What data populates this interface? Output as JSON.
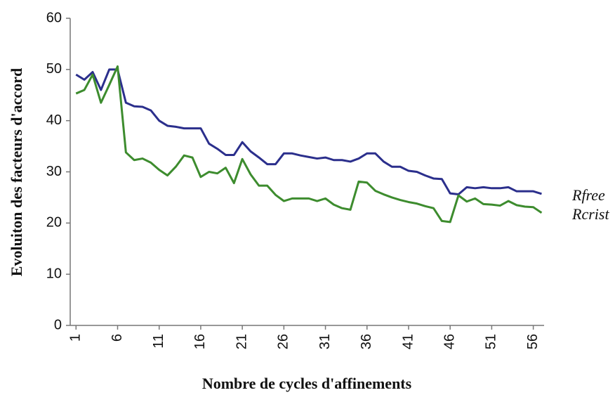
{
  "chart_data": {
    "type": "line",
    "x_label": "Nombre de cycles d'affinements",
    "y_label": "Evoluiton des facteurs d'accord",
    "x": [
      1,
      2,
      3,
      4,
      5,
      6,
      7,
      8,
      9,
      10,
      11,
      12,
      13,
      14,
      15,
      16,
      17,
      18,
      19,
      20,
      21,
      22,
      23,
      24,
      25,
      26,
      27,
      28,
      29,
      30,
      31,
      32,
      33,
      34,
      35,
      36,
      37,
      38,
      39,
      40,
      41,
      42,
      43,
      44,
      45,
      46,
      47,
      48,
      49,
      50,
      51,
      52,
      53,
      54,
      55,
      56,
      57
    ],
    "xlim": [
      0.3,
      57.3
    ],
    "xticks": [
      1,
      6,
      11,
      16,
      21,
      26,
      31,
      36,
      41,
      46,
      51,
      56
    ],
    "ylim": [
      0,
      60
    ],
    "yticks": [
      0,
      10,
      20,
      30,
      40,
      50,
      60
    ],
    "grid": false,
    "series": [
      {
        "name": "Rfree",
        "color": "#2b2f8c",
        "values": [
          49,
          48,
          49.5,
          46,
          50,
          50,
          43.5,
          42.8,
          42.7,
          42,
          40,
          39,
          38.8,
          38.5,
          38.5,
          38.5,
          35.5,
          34.5,
          33.3,
          33.3,
          35.8,
          34,
          32.8,
          31.5,
          31.5,
          33.6,
          33.6,
          33.2,
          32.9,
          32.6,
          32.8,
          32.3,
          32.3,
          32,
          32.6,
          33.6,
          33.6,
          32,
          31,
          31,
          30.2,
          30,
          29.3,
          28.7,
          28.6,
          25.8,
          25.6,
          27,
          26.8,
          27,
          26.8,
          26.8,
          27,
          26.2,
          26.2,
          26.2,
          25.7
        ]
      },
      {
        "name": "Rcrist",
        "color": "#3d8c2e",
        "values": [
          45.3,
          46,
          49,
          43.5,
          47,
          50.6,
          33.8,
          32.3,
          32.6,
          31.8,
          30.4,
          29.3,
          31,
          33.2,
          32.8,
          29,
          30,
          29.7,
          30.8,
          27.8,
          32.5,
          29.5,
          27.3,
          27.3,
          25.5,
          24.3,
          24.8,
          24.8,
          24.8,
          24.3,
          24.8,
          23.6,
          22.9,
          22.6,
          28.1,
          27.9,
          26.3,
          25.6,
          25,
          24.5,
          24.1,
          23.8,
          23.3,
          22.9,
          20.4,
          20.2,
          25.4,
          24.2,
          24.8,
          23.7,
          23.6,
          23.4,
          24.3,
          23.5,
          23.2,
          23.1,
          22
        ]
      }
    ]
  }
}
